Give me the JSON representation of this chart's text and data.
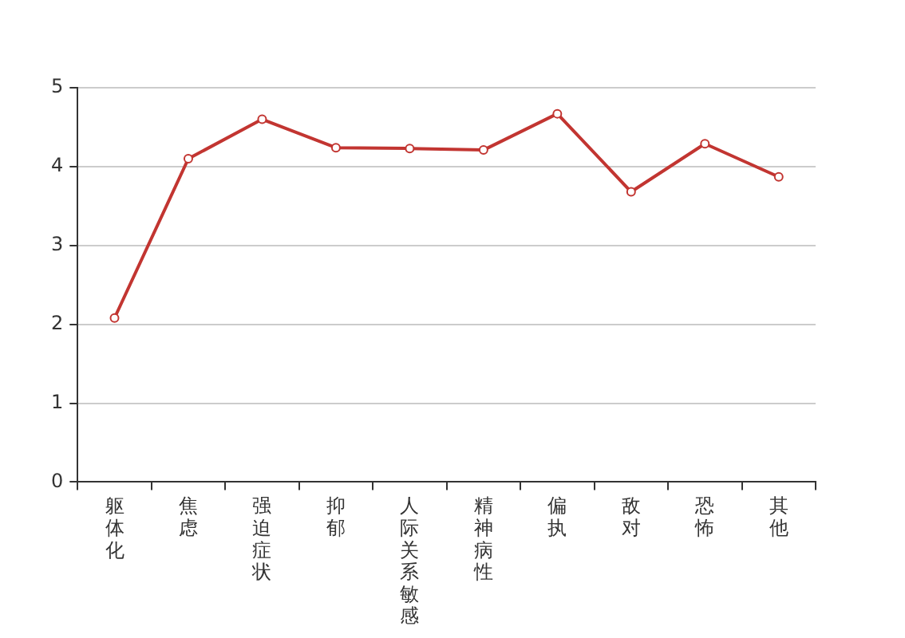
{
  "chart_data": {
    "type": "line",
    "categories": [
      "躯体化",
      "焦虑",
      "强迫症状",
      "抑郁",
      "人际关系敏感",
      "精神病性",
      "偏执",
      "敌对",
      "恐怖",
      "其他"
    ],
    "series": [
      {
        "color": "#c23531",
        "values": [
          2.08,
          4.1,
          4.6,
          4.24,
          4.23,
          4.21,
          4.67,
          3.68,
          4.29,
          3.87
        ]
      }
    ],
    "ylim": [
      0,
      5
    ],
    "yticks": [
      0,
      1,
      2,
      3,
      4,
      5
    ],
    "grid": "y",
    "marker": "circle"
  }
}
